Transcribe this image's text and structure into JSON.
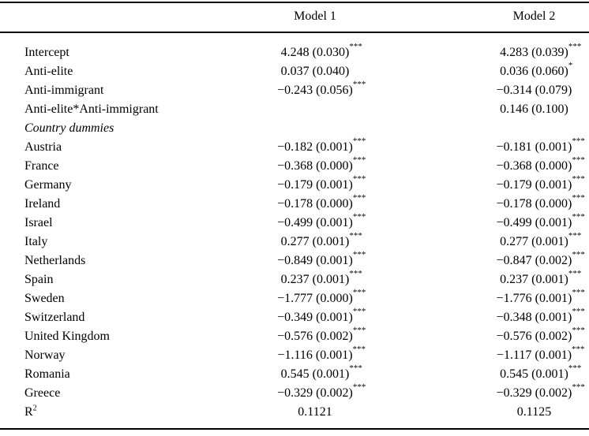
{
  "colors": {
    "text": "#000000",
    "background": "#ffffff"
  },
  "header": {
    "model1": "Model 1",
    "model2": "Model 2"
  },
  "rows": [
    {
      "label": "Intercept",
      "m1": "4.248 (0.030)",
      "m1s": "***",
      "m2": "4.283 (0.039)",
      "m2s": "***"
    },
    {
      "label": "Anti-elite",
      "m1": "0.037 (0.040)",
      "m1s": "",
      "m2": "0.036 (0.060)",
      "m2s": "*"
    },
    {
      "label": "Anti-immigrant",
      "m1": "−0.243 (0.056)",
      "m1s": "***",
      "m2": "−0.314 (0.079)",
      "m2s": ""
    },
    {
      "label": "Anti-elite*Anti-immigrant",
      "m1": "",
      "m1s": "",
      "m2": "0.146 (0.100)",
      "m2s": ""
    },
    {
      "label": "Country dummies",
      "italic": true,
      "m1": "",
      "m1s": "",
      "m2": "",
      "m2s": ""
    },
    {
      "label": "Austria",
      "m1": "−0.182 (0.001)",
      "m1s": "***",
      "m2": "−0.181 (0.001)",
      "m2s": "***"
    },
    {
      "label": "France",
      "m1": "−0.368 (0.000)",
      "m1s": "***",
      "m2": "−0.368 (0.000)",
      "m2s": "***"
    },
    {
      "label": "Germany",
      "m1": "−0.179 (0.001)",
      "m1s": "***",
      "m2": "−0.179 (0.001)",
      "m2s": "***"
    },
    {
      "label": "Ireland",
      "m1": "−0.178 (0.000)",
      "m1s": "***",
      "m2": "−0.178 (0.000)",
      "m2s": "***"
    },
    {
      "label": "Israel",
      "m1": "−0.499 (0.001)",
      "m1s": "***",
      "m2": "−0.499 (0.001)",
      "m2s": "***"
    },
    {
      "label": "Italy",
      "m1": "0.277 (0.001)",
      "m1s": "***",
      "m2": "0.277 (0.001)",
      "m2s": "***"
    },
    {
      "label": "Netherlands",
      "m1": "−0.849 (0.001)",
      "m1s": "***",
      "m2": "−0.847 (0.002)",
      "m2s": "***"
    },
    {
      "label": "Spain",
      "m1": "0.237 (0.001)",
      "m1s": "***",
      "m2": "0.237 (0.001)",
      "m2s": "***"
    },
    {
      "label": "Sweden",
      "m1": "−1.777 (0.000)",
      "m1s": "***",
      "m2": "−1.776 (0.001)",
      "m2s": "***"
    },
    {
      "label": "Switzerland",
      "m1": "−0.349 (0.001)",
      "m1s": "***",
      "m2": "−0.348 (0.001)",
      "m2s": "***"
    },
    {
      "label": "United Kingdom",
      "m1": "−0.576 (0.002)",
      "m1s": "***",
      "m2": "−0.576 (0.002)",
      "m2s": "***"
    },
    {
      "label": "Norway",
      "m1": "−1.116 (0.001)",
      "m1s": "***",
      "m2": "−1.117 (0.001)",
      "m2s": "***"
    },
    {
      "label": "Romania",
      "m1": "0.545 (0.001)",
      "m1s": "***",
      "m2": "0.545 (0.001)",
      "m2s": "***"
    },
    {
      "label": "Greece",
      "m1": "−0.329 (0.002)",
      "m1s": "***",
      "m2": "−0.329 (0.002)",
      "m2s": "***"
    },
    {
      "label": "R",
      "label_sup": "2",
      "m1": "0.1121",
      "m1s": "",
      "m2": "0.1125",
      "m2s": ""
    }
  ]
}
